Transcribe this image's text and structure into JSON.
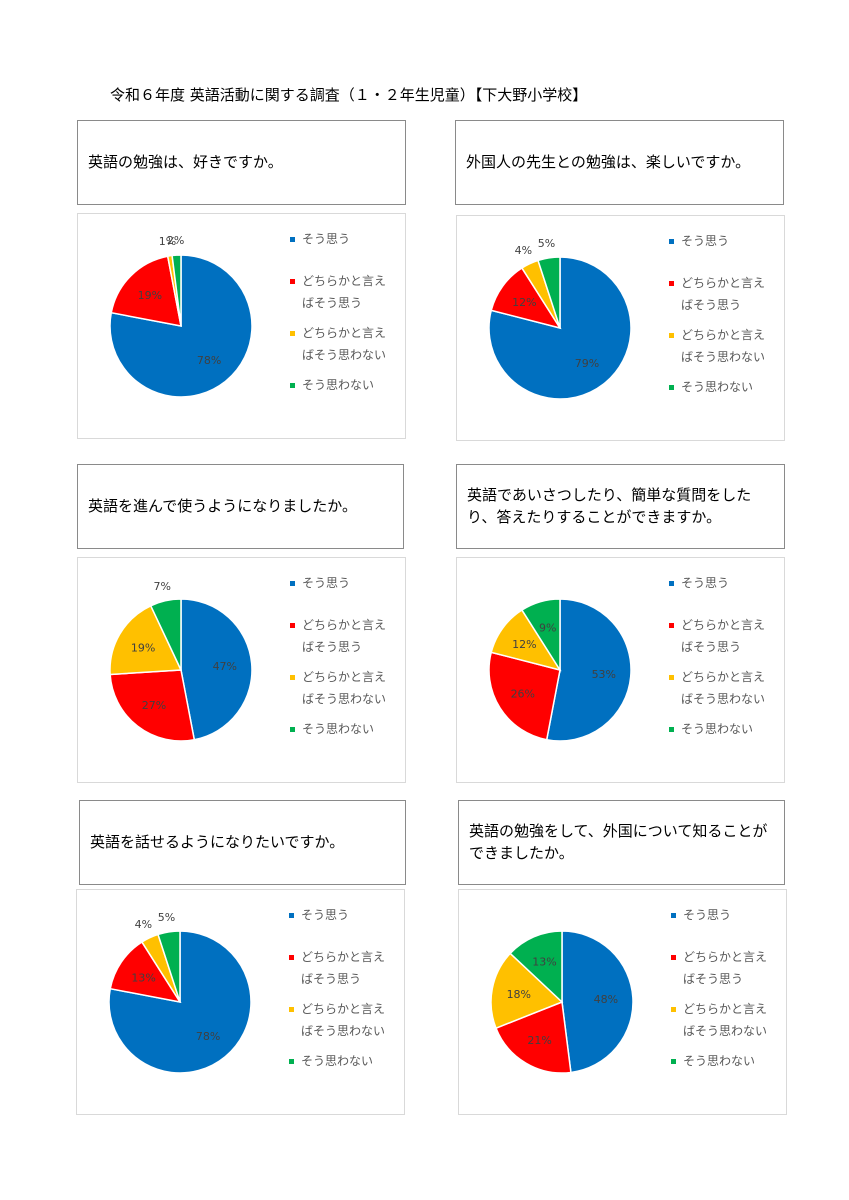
{
  "title": "令和６年度 英語活動に関する調査（１・２年生児童）【下大野小学校】",
  "legend": [
    "そう思う",
    "どちらかと言えばそう思う",
    "どちらかと言えばそう思わない",
    "そう思わない"
  ],
  "legend_lines": [
    [
      "そう思う"
    ],
    [
      "どちらかと言え",
      "ばそう思う"
    ],
    [
      "どちらかと言え",
      "ばそう思わない"
    ],
    [
      "そう思わない"
    ]
  ],
  "colors": [
    "#0070C0",
    "#FF0000",
    "#FFC000",
    "#00B050"
  ],
  "questions": [
    "英語の勉強は、好きですか。",
    "外国人の先生との勉強は、楽しいですか。",
    "英語を進んで使うようになりましたか。",
    "英語であいさつしたり、簡単な質問をしたり、答えたりすることができますか。",
    "英語を話せるようになりたいですか。",
    "英語の勉強をして、外国について知ることができましたか。"
  ],
  "chart_data": [
    {
      "type": "pie",
      "categories": [
        "そう思う",
        "どちらかと言えばそう思う",
        "どちらかと言えばそう思わない",
        "そう思わない"
      ],
      "values": [
        78,
        19,
        1,
        2
      ],
      "labels": [
        "78%",
        "19%",
        "1%",
        "2%"
      ]
    },
    {
      "type": "pie",
      "categories": [
        "そう思う",
        "どちらかと言えばそう思う",
        "どちらかと言えばそう思わない",
        "そう思わない"
      ],
      "values": [
        79,
        12,
        4,
        5
      ],
      "labels": [
        "79%",
        "12%",
        "4%",
        "5%"
      ]
    },
    {
      "type": "pie",
      "categories": [
        "そう思う",
        "どちらかと言えばそう思う",
        "どちらかと言えばそう思わない",
        "そう思わない"
      ],
      "values": [
        47,
        27,
        19,
        7
      ],
      "labels": [
        "47%",
        "27%",
        "19%",
        "7%"
      ]
    },
    {
      "type": "pie",
      "categories": [
        "そう思う",
        "どちらかと言えばそう思う",
        "どちらかと言えばそう思わない",
        "そう思わない"
      ],
      "values": [
        53,
        26,
        12,
        9
      ],
      "labels": [
        "53%",
        "26%",
        "12%",
        "9%"
      ]
    },
    {
      "type": "pie",
      "categories": [
        "そう思う",
        "どちらかと言えばそう思う",
        "どちらかと言えばそう思わない",
        "そう思わない"
      ],
      "values": [
        78,
        13,
        4,
        5
      ],
      "labels": [
        "78%",
        "13%",
        "4%",
        "5%"
      ]
    },
    {
      "type": "pie",
      "categories": [
        "そう思う",
        "どちらかと言えばそう思う",
        "どちらかと言えばそう思わない",
        "そう思わない"
      ],
      "values": [
        48,
        21,
        18,
        13
      ],
      "labels": [
        "48%",
        "21%",
        "18%",
        "13%"
      ]
    }
  ]
}
